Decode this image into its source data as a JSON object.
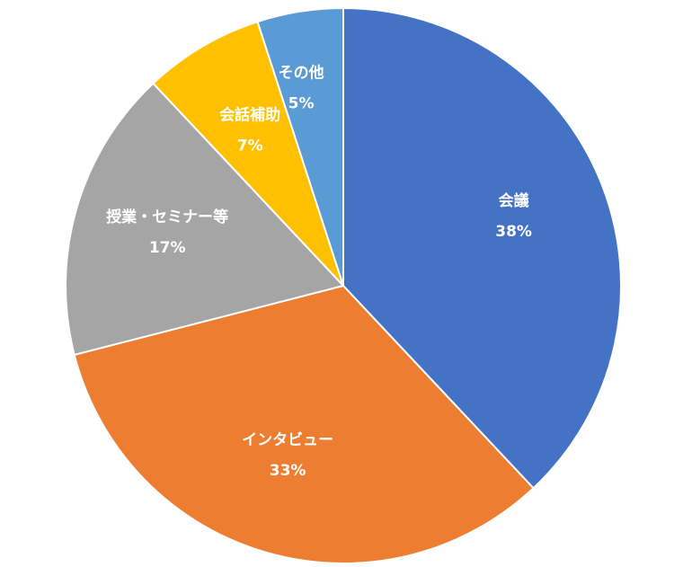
{
  "chart_data": {
    "type": "pie",
    "title": "",
    "slices": [
      {
        "label": "会議",
        "value": 38,
        "value_label": "38%",
        "color": "#4472C4"
      },
      {
        "label": "インタビュー",
        "value": 33,
        "value_label": "33%",
        "color": "#ED7D31"
      },
      {
        "label": "授業・セミナー等",
        "value": 17,
        "value_label": "17%",
        "color": "#A5A5A5"
      },
      {
        "label": "会話補助",
        "value": 7,
        "value_label": "7%",
        "color": "#FFC000"
      },
      {
        "label": "その他",
        "value": 5,
        "value_label": "5%",
        "color": "#5B9BD5"
      }
    ],
    "start_angle": "12 o'clock",
    "direction": "clockwise",
    "legend": "none",
    "data_labels": "inside, category name and percentage, white bold"
  }
}
